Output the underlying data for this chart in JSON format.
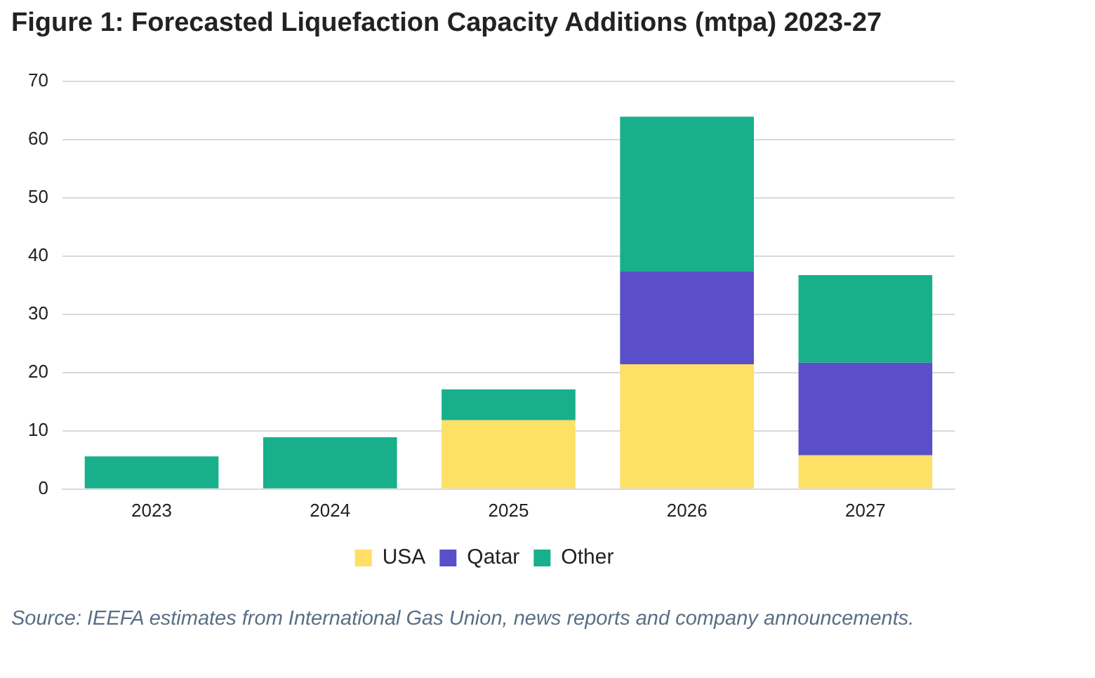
{
  "chart_data": {
    "type": "bar",
    "title": "Figure 1: Forecasted Liquefaction Capacity Additions (mtpa) 2023-27",
    "categories": [
      "2023",
      "2024",
      "2025",
      "2026",
      "2027"
    ],
    "series": [
      {
        "name": "USA",
        "color": "#ffe066",
        "values": [
          null,
          null,
          11.8,
          21.4,
          5.8
        ]
      },
      {
        "name": "Qatar",
        "color": "#5a4fc8",
        "values": [
          null,
          null,
          null,
          15.9,
          15.9
        ]
      },
      {
        "name": "Other",
        "color": "#17b08b",
        "values": [
          5.6,
          8.9,
          5.3,
          26.6,
          15.0
        ]
      }
    ],
    "stacked": true,
    "ylim": [
      0,
      70
    ],
    "yticks": [
      0,
      10,
      20,
      30,
      40,
      50,
      60,
      70
    ],
    "grid": "y",
    "legend": "bottom",
    "annotations": [
      "Source: IEEFA estimates from International Gas Union, news reports and company announcements."
    ]
  }
}
